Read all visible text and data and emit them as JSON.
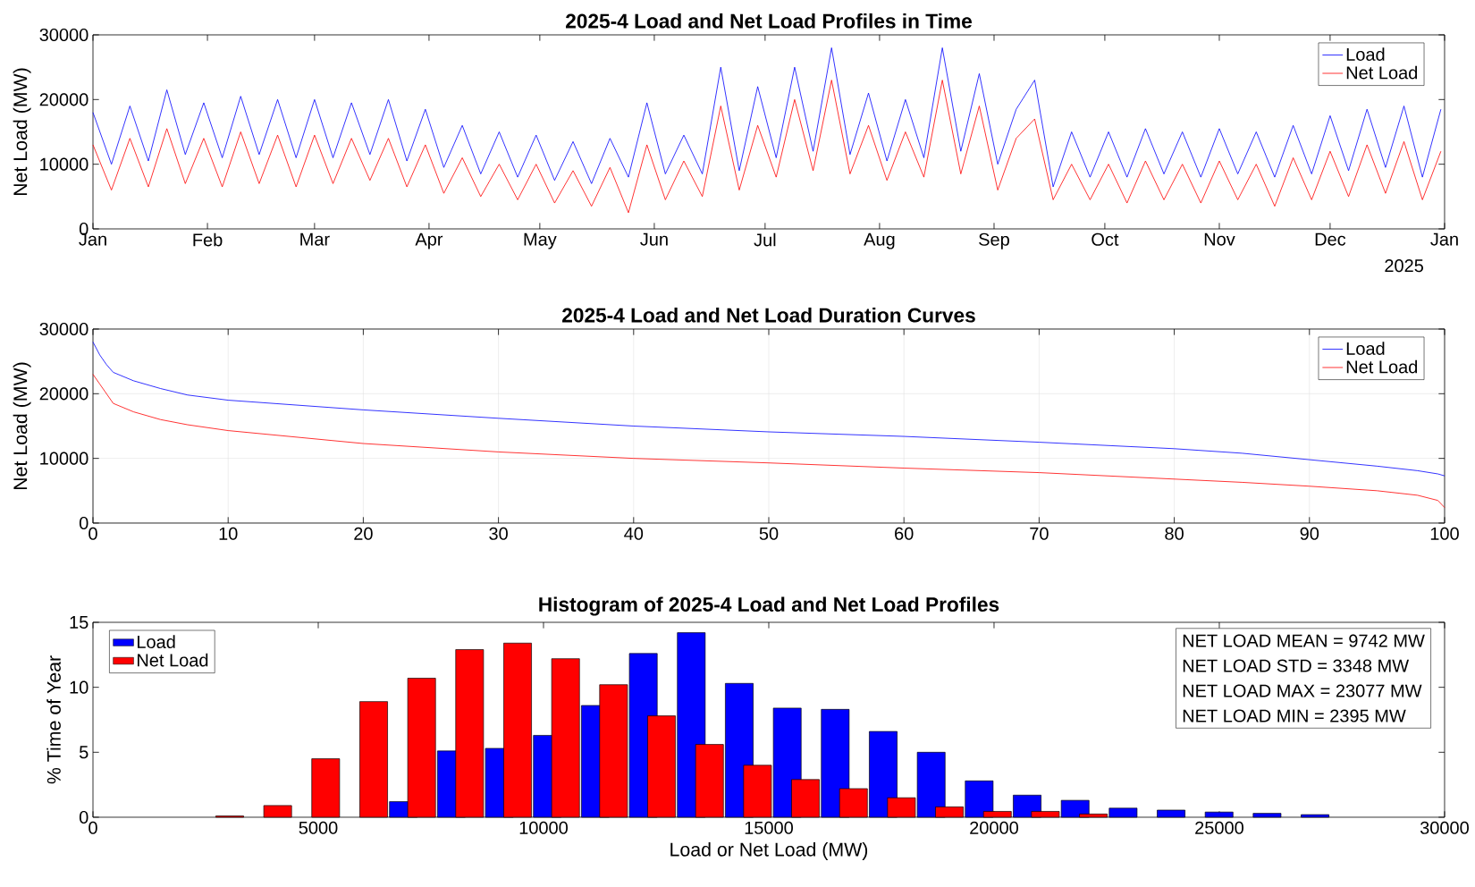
{
  "chart_data": [
    {
      "type": "line",
      "title": "2025-4 Load and Net Load Profiles in Time",
      "ylabel": "Net Load (MW)",
      "x": [
        "2024-01-01",
        "2024-01-06",
        "2024-01-11",
        "2024-01-16",
        "2024-01-21",
        "2024-01-26",
        "2024-01-31",
        "2024-02-05",
        "2024-02-10",
        "2024-02-15",
        "2024-02-20",
        "2024-02-25",
        "2024-03-01",
        "2024-03-06",
        "2024-03-11",
        "2024-03-16",
        "2024-03-21",
        "2024-03-26",
        "2024-03-31",
        "2024-04-05",
        "2024-04-10",
        "2024-04-15",
        "2024-04-20",
        "2024-04-25",
        "2024-04-30",
        "2024-05-05",
        "2024-05-10",
        "2024-05-15",
        "2024-05-20",
        "2024-05-25",
        "2024-05-30",
        "2024-06-04",
        "2024-06-09",
        "2024-06-14",
        "2024-06-19",
        "2024-06-24",
        "2024-06-29",
        "2024-07-04",
        "2024-07-09",
        "2024-07-14",
        "2024-07-19",
        "2024-07-24",
        "2024-07-29",
        "2024-08-03",
        "2024-08-08",
        "2024-08-13",
        "2024-08-18",
        "2024-08-23",
        "2024-08-28",
        "2024-09-02",
        "2024-09-07",
        "2024-09-12",
        "2024-09-17",
        "2024-09-22",
        "2024-09-27",
        "2024-10-02",
        "2024-10-07",
        "2024-10-12",
        "2024-10-17",
        "2024-10-22",
        "2024-10-27",
        "2024-11-01",
        "2024-11-06",
        "2024-11-11",
        "2024-11-16",
        "2024-11-21",
        "2024-11-26",
        "2024-12-01",
        "2024-12-06",
        "2024-12-11",
        "2024-12-16",
        "2024-12-21",
        "2024-12-26",
        "2024-12-31"
      ],
      "series": [
        {
          "name": "Load",
          "color": "#0000ff",
          "values": [
            18000,
            10000,
            19000,
            10500,
            21500,
            11500,
            19500,
            11000,
            20500,
            11500,
            20000,
            11000,
            20000,
            11000,
            19500,
            11500,
            20000,
            10500,
            18500,
            9500,
            16000,
            8500,
            15000,
            8000,
            14500,
            7500,
            13500,
            7000,
            14000,
            8000,
            19500,
            8500,
            14500,
            8500,
            25000,
            9000,
            22000,
            11000,
            25000,
            12000,
            28000,
            11500,
            21000,
            10500,
            20000,
            11000,
            28000,
            12000,
            24000,
            10000,
            18500,
            23000,
            6500,
            15000,
            8000,
            15000,
            8000,
            15500,
            8500,
            15000,
            8000,
            15500,
            8500,
            15000,
            8000,
            16000,
            8500,
            17500,
            9000,
            18500,
            9500,
            19000,
            8000,
            18500
          ]
        },
        {
          "name": "Net Load",
          "color": "#ff0000",
          "values": [
            13000,
            6000,
            14000,
            6500,
            15500,
            7000,
            14000,
            6500,
            15000,
            7000,
            14500,
            6500,
            14500,
            7000,
            14000,
            7500,
            14000,
            6500,
            13000,
            5500,
            11000,
            5000,
            10000,
            4500,
            10000,
            4000,
            9000,
            3500,
            9500,
            2500,
            13000,
            4500,
            10500,
            5000,
            19000,
            6000,
            16000,
            8000,
            20000,
            9000,
            23000,
            8500,
            16000,
            7500,
            15000,
            8000,
            23000,
            8500,
            19000,
            6000,
            14000,
            17000,
            4500,
            10000,
            4500,
            10000,
            4000,
            10500,
            4500,
            10000,
            4000,
            10500,
            4500,
            10000,
            3500,
            11000,
            4500,
            12000,
            5000,
            13000,
            5500,
            13500,
            4500,
            12000
          ]
        }
      ],
      "xlim": [
        "2024-01-01",
        "2025-01-01"
      ],
      "xticks": [
        {
          "value": "2024-01-01",
          "label": "Jan"
        },
        {
          "value": "2024-02-01",
          "label": "Feb"
        },
        {
          "value": "2024-03-01",
          "label": "Mar"
        },
        {
          "value": "2024-04-01",
          "label": "Apr"
        },
        {
          "value": "2024-05-01",
          "label": "May"
        },
        {
          "value": "2024-06-01",
          "label": "Jun"
        },
        {
          "value": "2024-07-01",
          "label": "Jul"
        },
        {
          "value": "2024-08-01",
          "label": "Aug"
        },
        {
          "value": "2024-09-01",
          "label": "Sep"
        },
        {
          "value": "2024-10-01",
          "label": "Oct"
        },
        {
          "value": "2024-11-01",
          "label": "Nov"
        },
        {
          "value": "2024-12-01",
          "label": "Dec"
        },
        {
          "value": "2025-01-01",
          "label": "Jan"
        }
      ],
      "ylim": [
        0,
        30000
      ],
      "yticks": [
        0,
        10000,
        20000,
        30000
      ],
      "legend": "top right",
      "annotations": [
        "2025"
      ]
    },
    {
      "type": "line",
      "title": "2025-4 Load and Net Load Duration Curves",
      "ylabel": "Net Load (MW)",
      "x": [
        0,
        0.5,
        1,
        1.5,
        3,
        5,
        7,
        10,
        20,
        30,
        40,
        50,
        60,
        70,
        80,
        85,
        90,
        95,
        98,
        99.5,
        100
      ],
      "series": [
        {
          "name": "Load",
          "color": "#0000ff",
          "values": [
            28000,
            26000,
            24500,
            23300,
            22000,
            20800,
            19800,
            19000,
            17500,
            16200,
            15000,
            14100,
            13400,
            12500,
            11500,
            10800,
            9800,
            8800,
            8100,
            7600,
            7300
          ]
        },
        {
          "name": "Net Load",
          "color": "#ff0000",
          "values": [
            23000,
            21500,
            20000,
            18500,
            17200,
            16000,
            15200,
            14300,
            12300,
            11000,
            10000,
            9300,
            8500,
            7800,
            6800,
            6300,
            5700,
            5000,
            4300,
            3500,
            2400
          ]
        }
      ],
      "xlim": [
        0,
        100
      ],
      "xticks": [
        0,
        10,
        20,
        30,
        40,
        50,
        60,
        70,
        80,
        90,
        100
      ],
      "ylim": [
        0,
        30000
      ],
      "yticks": [
        0,
        10000,
        20000,
        30000
      ],
      "grid": true,
      "legend": "top right"
    },
    {
      "type": "histogram",
      "title": "Histogram of 2025-4 Load and Net Load Profiles",
      "xlabel": "Load or Net Load (MW)",
      "ylabel": "% Time of Year",
      "bins": [
        2300,
        3365,
        4430,
        5495,
        6560,
        7625,
        8690,
        9755,
        10820,
        11885,
        12950,
        14015,
        15080,
        16145,
        17210,
        18275,
        19340,
        20405,
        21470,
        22535,
        23600,
        24665,
        25730,
        26795,
        27860
      ],
      "series": [
        {
          "name": "Load",
          "color": "#0000ff",
          "values": [
            0,
            0,
            0,
            0,
            1.2,
            5.1,
            5.3,
            6.3,
            8.6,
            12.6,
            14.2,
            10.3,
            8.4,
            8.3,
            6.6,
            5.0,
            2.8,
            1.7,
            1.3,
            0.7,
            0.55,
            0.4,
            0.3,
            0.2
          ]
        },
        {
          "name": "Net Load",
          "color": "#ff0000",
          "values": [
            0.1,
            0.9,
            4.5,
            8.9,
            10.7,
            12.9,
            13.4,
            12.2,
            10.2,
            7.8,
            5.6,
            4.0,
            2.9,
            2.2,
            1.5,
            0.8,
            0.45,
            0.45,
            0.25,
            0,
            0,
            0,
            0,
            0
          ]
        }
      ],
      "xlim": [
        0,
        30000
      ],
      "xticks": [
        0,
        5000,
        10000,
        15000,
        20000,
        25000,
        30000
      ],
      "ylim": [
        0,
        15
      ],
      "yticks": [
        0,
        5,
        10,
        15
      ],
      "legend": "top left",
      "annotations": [
        "NET LOAD MEAN = 9742 MW",
        "NET LOAD STD = 3348 MW",
        "NET LOAD MAX = 23077 MW",
        "NET LOAD MIN = 2395 MW"
      ]
    }
  ]
}
